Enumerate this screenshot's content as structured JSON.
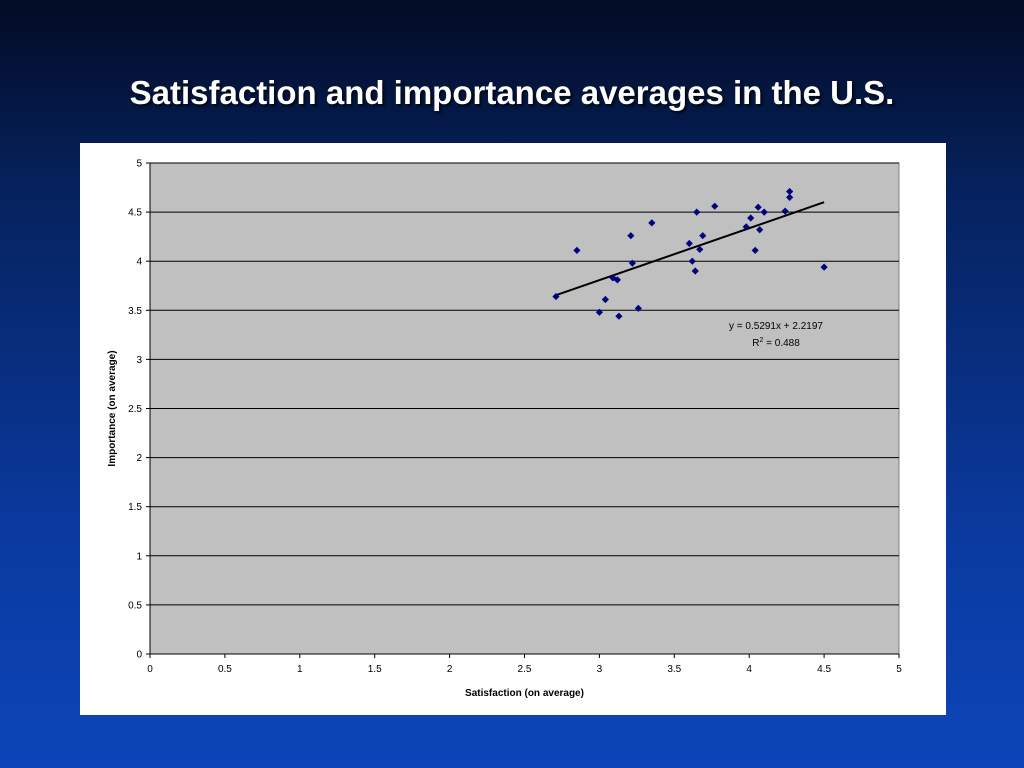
{
  "slide": {
    "title": "Satisfaction and importance averages in the U.S."
  },
  "colors": {
    "plot_background": "#c0c0c0",
    "point_color": "#000080",
    "trendline_color": "#000000",
    "gridline_color": "#000000"
  },
  "chart_data": {
    "type": "scatter",
    "xlabel": "Satisfaction (on average)",
    "ylabel": "Importance (on average)",
    "xlim": [
      0,
      5
    ],
    "ylim": [
      0,
      5
    ],
    "x_ticks": [
      "0",
      "0.5",
      "1",
      "1.5",
      "2",
      "2.5",
      "3",
      "3.5",
      "4",
      "4.5",
      "5"
    ],
    "y_ticks": [
      "0",
      "0.5",
      "1",
      "1.5",
      "2",
      "2.5",
      "3",
      "3.5",
      "4",
      "4.5",
      "5"
    ],
    "grid": "horizontal",
    "points": [
      {
        "x": 2.71,
        "y": 3.64
      },
      {
        "x": 2.85,
        "y": 4.11
      },
      {
        "x": 3.0,
        "y": 3.48
      },
      {
        "x": 3.04,
        "y": 3.61
      },
      {
        "x": 3.09,
        "y": 3.83
      },
      {
        "x": 3.12,
        "y": 3.81
      },
      {
        "x": 3.13,
        "y": 3.44
      },
      {
        "x": 3.21,
        "y": 4.26
      },
      {
        "x": 3.22,
        "y": 3.98
      },
      {
        "x": 3.26,
        "y": 3.52
      },
      {
        "x": 3.35,
        "y": 4.39
      },
      {
        "x": 3.6,
        "y": 4.18
      },
      {
        "x": 3.62,
        "y": 4.0
      },
      {
        "x": 3.64,
        "y": 3.9
      },
      {
        "x": 3.65,
        "y": 4.5
      },
      {
        "x": 3.67,
        "y": 4.12
      },
      {
        "x": 3.69,
        "y": 4.26
      },
      {
        "x": 3.77,
        "y": 4.56
      },
      {
        "x": 3.98,
        "y": 4.35
      },
      {
        "x": 4.01,
        "y": 4.44
      },
      {
        "x": 4.04,
        "y": 4.11
      },
      {
        "x": 4.06,
        "y": 4.55
      },
      {
        "x": 4.07,
        "y": 4.32
      },
      {
        "x": 4.1,
        "y": 4.5
      },
      {
        "x": 4.24,
        "y": 4.51
      },
      {
        "x": 4.27,
        "y": 4.71
      },
      {
        "x": 4.27,
        "y": 4.65
      },
      {
        "x": 4.5,
        "y": 3.94
      }
    ],
    "trendline": {
      "slope": 0.5291,
      "intercept": 2.2197,
      "x_range": [
        2.71,
        4.5
      ]
    },
    "annotation": {
      "equation": "y = 0.5291x + 2.2197",
      "r2_prefix": "R",
      "r2_sup": "2",
      "r2_suffix": " = 0.488"
    }
  }
}
